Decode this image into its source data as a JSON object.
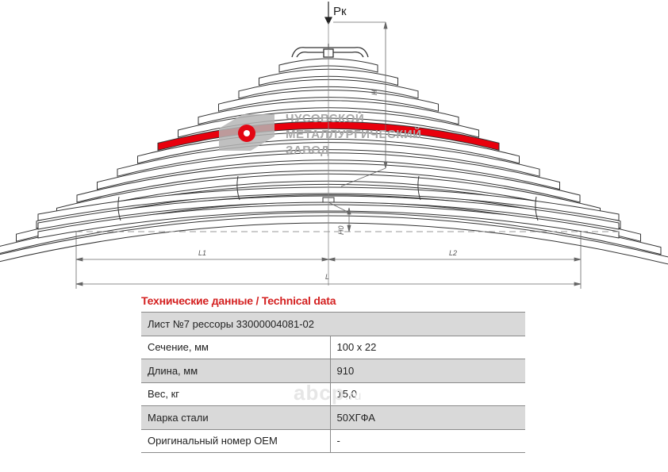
{
  "drawing": {
    "load_label": "Рк",
    "dim_labels": {
      "H": "H",
      "H0": "H0",
      "L1": "L1",
      "L2": "L2",
      "L": "L"
    },
    "logo": {
      "line1": "ЧУСОВСКОЙ",
      "line2": "МЕТАЛЛУРГИЧЕСКИЙ",
      "line3": "ЗАВОД"
    },
    "colors": {
      "highlight_leaf": "#e8000d",
      "logo_gray": "#a8a8a8",
      "logo_red": "#e30613"
    },
    "highlighted_leaf_number": 7,
    "leaf_count": 16
  },
  "technical_data": {
    "title": "Технические данные / Technical data",
    "header": "Лист №7 рессоры 33000004081-02",
    "rows": [
      {
        "label": "Сечение, мм",
        "value": "100 х 22"
      },
      {
        "label": "Длина, мм",
        "value": "910"
      },
      {
        "label": "Вес, кг",
        "value": "15,0"
      },
      {
        "label": "Марка стали",
        "value": "50ХГФА"
      },
      {
        "label": "Оригинальный номер OEM",
        "value": "-"
      }
    ]
  },
  "watermark": {
    "text": "abcp",
    "suffix": ".ru"
  }
}
